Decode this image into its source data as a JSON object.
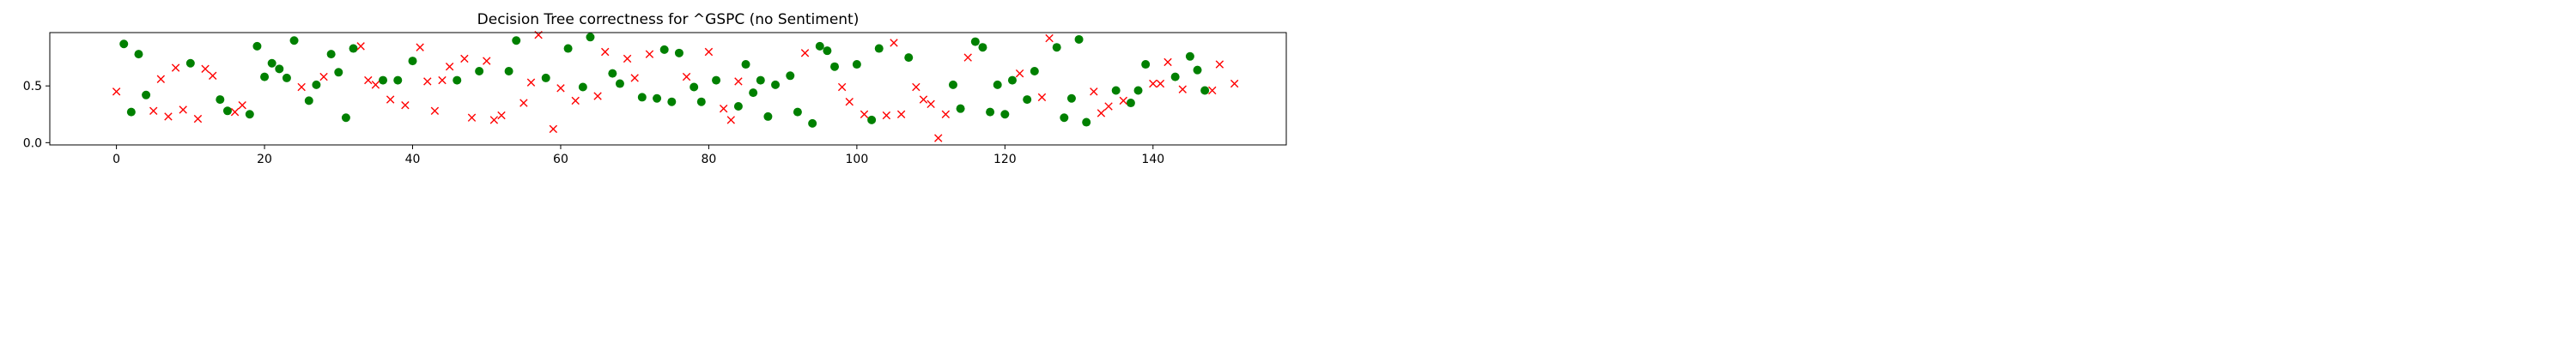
{
  "chart_data": {
    "type": "scatter",
    "title": "Decision Tree correctness for ^GSPC (no Sentiment)",
    "xlabel": "",
    "ylabel": "",
    "xlim": [
      -9,
      158
    ],
    "ylim": [
      -0.02,
      0.97
    ],
    "x_ticks": [
      0,
      20,
      40,
      60,
      80,
      100,
      120,
      140
    ],
    "y_ticks": [
      0.0,
      0.5
    ],
    "y_tick_labels": [
      "0.0",
      "0.5"
    ],
    "grid": false,
    "legend": "none",
    "series": [
      {
        "marker": "circle",
        "color": "#008000",
        "points": [
          [
            1,
            0.87
          ],
          [
            2,
            0.27
          ],
          [
            3,
            0.78
          ],
          [
            4,
            0.42
          ],
          [
            10,
            0.7
          ],
          [
            14,
            0.38
          ],
          [
            15,
            0.28
          ],
          [
            18,
            0.25
          ],
          [
            19,
            0.85
          ],
          [
            20,
            0.58
          ],
          [
            21,
            0.7
          ],
          [
            22,
            0.65
          ],
          [
            23,
            0.57
          ],
          [
            24,
            0.9
          ],
          [
            26,
            0.37
          ],
          [
            27,
            0.51
          ],
          [
            29,
            0.78
          ],
          [
            30,
            0.62
          ],
          [
            31,
            0.22
          ],
          [
            32,
            0.83
          ],
          [
            36,
            0.55
          ],
          [
            38,
            0.55
          ],
          [
            40,
            0.72
          ],
          [
            46,
            0.55
          ],
          [
            49,
            0.63
          ],
          [
            53,
            0.63
          ],
          [
            54,
            0.9
          ],
          [
            58,
            0.57
          ],
          [
            61,
            0.83
          ],
          [
            63,
            0.49
          ],
          [
            64,
            0.93
          ],
          [
            67,
            0.61
          ],
          [
            68,
            0.52
          ],
          [
            71,
            0.4
          ],
          [
            73,
            0.39
          ],
          [
            74,
            0.82
          ],
          [
            75,
            0.36
          ],
          [
            76,
            0.79
          ],
          [
            78,
            0.49
          ],
          [
            79,
            0.36
          ],
          [
            81,
            0.55
          ],
          [
            84,
            0.32
          ],
          [
            85,
            0.69
          ],
          [
            86,
            0.44
          ],
          [
            87,
            0.55
          ],
          [
            88,
            0.23
          ],
          [
            89,
            0.51
          ],
          [
            91,
            0.59
          ],
          [
            92,
            0.27
          ],
          [
            94,
            0.17
          ],
          [
            95,
            0.85
          ],
          [
            96,
            0.81
          ],
          [
            97,
            0.67
          ],
          [
            100,
            0.69
          ],
          [
            102,
            0.2
          ],
          [
            103,
            0.83
          ],
          [
            107,
            0.75
          ],
          [
            113,
            0.51
          ],
          [
            114,
            0.3
          ],
          [
            116,
            0.89
          ],
          [
            117,
            0.84
          ],
          [
            118,
            0.27
          ],
          [
            119,
            0.51
          ],
          [
            120,
            0.25
          ],
          [
            121,
            0.55
          ],
          [
            123,
            0.38
          ],
          [
            124,
            0.63
          ],
          [
            127,
            0.84
          ],
          [
            128,
            0.22
          ],
          [
            129,
            0.39
          ],
          [
            130,
            0.91
          ],
          [
            131,
            0.18
          ],
          [
            135,
            0.46
          ],
          [
            137,
            0.35
          ],
          [
            138,
            0.46
          ],
          [
            139,
            0.69
          ],
          [
            143,
            0.58
          ],
          [
            145,
            0.76
          ],
          [
            146,
            0.64
          ],
          [
            147,
            0.46
          ]
        ]
      },
      {
        "marker": "x",
        "color": "#ff0000",
        "points": [
          [
            0,
            0.45
          ],
          [
            5,
            0.28
          ],
          [
            6,
            0.56
          ],
          [
            7,
            0.23
          ],
          [
            8,
            0.66
          ],
          [
            9,
            0.29
          ],
          [
            11,
            0.21
          ],
          [
            12,
            0.65
          ],
          [
            13,
            0.59
          ],
          [
            16,
            0.27
          ],
          [
            17,
            0.33
          ],
          [
            25,
            0.49
          ],
          [
            28,
            0.58
          ],
          [
            33,
            0.85
          ],
          [
            34,
            0.55
          ],
          [
            35,
            0.51
          ],
          [
            37,
            0.38
          ],
          [
            39,
            0.33
          ],
          [
            41,
            0.84
          ],
          [
            42,
            0.54
          ],
          [
            43,
            0.28
          ],
          [
            44,
            0.55
          ],
          [
            45,
            0.67
          ],
          [
            47,
            0.74
          ],
          [
            48,
            0.22
          ],
          [
            50,
            0.72
          ],
          [
            51,
            0.2
          ],
          [
            52,
            0.24
          ],
          [
            55,
            0.35
          ],
          [
            56,
            0.53
          ],
          [
            57,
            0.95
          ],
          [
            59,
            0.12
          ],
          [
            60,
            0.48
          ],
          [
            62,
            0.37
          ],
          [
            65,
            0.41
          ],
          [
            66,
            0.8
          ],
          [
            69,
            0.74
          ],
          [
            70,
            0.57
          ],
          [
            72,
            0.78
          ],
          [
            77,
            0.58
          ],
          [
            80,
            0.8
          ],
          [
            82,
            0.3
          ],
          [
            83,
            0.2
          ],
          [
            84,
            0.54
          ],
          [
            93,
            0.79
          ],
          [
            98,
            0.49
          ],
          [
            99,
            0.36
          ],
          [
            101,
            0.25
          ],
          [
            104,
            0.24
          ],
          [
            105,
            0.88
          ],
          [
            106,
            0.25
          ],
          [
            108,
            0.49
          ],
          [
            109,
            0.38
          ],
          [
            110,
            0.34
          ],
          [
            111,
            0.04
          ],
          [
            112,
            0.25
          ],
          [
            115,
            0.75
          ],
          [
            122,
            0.61
          ],
          [
            125,
            0.4
          ],
          [
            126,
            0.92
          ],
          [
            132,
            0.45
          ],
          [
            133,
            0.26
          ],
          [
            134,
            0.32
          ],
          [
            136,
            0.37
          ],
          [
            140,
            0.52
          ],
          [
            141,
            0.52
          ],
          [
            142,
            0.71
          ],
          [
            144,
            0.47
          ],
          [
            148,
            0.46
          ],
          [
            149,
            0.69
          ],
          [
            151,
            0.52
          ]
        ]
      }
    ]
  }
}
